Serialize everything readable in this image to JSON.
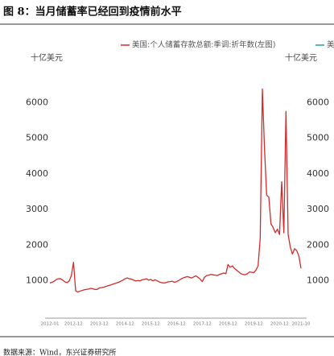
{
  "chart_data": {
    "type": "line",
    "title": "图 8：当月储蓄率已经回到疫情前水平",
    "y_unit_left": "十亿美元",
    "y_unit_right": "十亿美元",
    "source": "数据来源：Wind，东兴证券研究所",
    "x": [
      "2012-01",
      "2012-02",
      "2012-03",
      "2012-04",
      "2012-05",
      "2012-06",
      "2012-07",
      "2012-08",
      "2012-09",
      "2012-10",
      "2012-11",
      "2012-12",
      "2013-01",
      "2013-02",
      "2013-03",
      "2013-04",
      "2013-05",
      "2013-06",
      "2013-07",
      "2013-08",
      "2013-09",
      "2013-10",
      "2013-11",
      "2013-12",
      "2014-01",
      "2014-02",
      "2014-03",
      "2014-04",
      "2014-05",
      "2014-06",
      "2014-07",
      "2014-08",
      "2014-09",
      "2014-10",
      "2014-11",
      "2014-12",
      "2015-01",
      "2015-02",
      "2015-03",
      "2015-04",
      "2015-05",
      "2015-06",
      "2015-07",
      "2015-08",
      "2015-09",
      "2015-10",
      "2015-11",
      "2015-12",
      "2016-01",
      "2016-02",
      "2016-03",
      "2016-04",
      "2016-05",
      "2016-06",
      "2016-07",
      "2016-08",
      "2016-09",
      "2016-10",
      "2016-11",
      "2016-12",
      "2017-01",
      "2017-02",
      "2017-03",
      "2017-04",
      "2017-05",
      "2017-06",
      "2017-07",
      "2017-08",
      "2017-09",
      "2017-10",
      "2017-11",
      "2017-12",
      "2018-01",
      "2018-02",
      "2018-03",
      "2018-04",
      "2018-05",
      "2018-06",
      "2018-07",
      "2018-08",
      "2018-09",
      "2018-10",
      "2018-11",
      "2018-12",
      "2019-01",
      "2019-02",
      "2019-03",
      "2019-04",
      "2019-05",
      "2019-06",
      "2019-07",
      "2019-08",
      "2019-09",
      "2019-10",
      "2019-11",
      "2019-12",
      "2020-01",
      "2020-02",
      "2020-03",
      "2020-04",
      "2020-05",
      "2020-06",
      "2020-07",
      "2020-08",
      "2020-09",
      "2020-10",
      "2020-11",
      "2020-12",
      "2021-01",
      "2021-02",
      "2021-03",
      "2021-04",
      "2021-05",
      "2021-06",
      "2021-07",
      "2021-08",
      "2021-09",
      "2021-10"
    ],
    "xticks": [
      "2012-01",
      "2012-12",
      "2013-12",
      "2014-12",
      "2015-12",
      "2016-12",
      "2017-12",
      "2018-12",
      "2019-12",
      "2020-12",
      "2021-10"
    ],
    "series": [
      {
        "name": "美国:个人储蓄存款总额:季调:折年数(左图)",
        "color": "#d42a2a",
        "values": [
          940,
          960,
          990,
          1040,
          1060,
          1060,
          1020,
          970,
          950,
          1000,
          1150,
          1520,
          720,
          690,
          710,
          730,
          750,
          760,
          770,
          790,
          780,
          760,
          760,
          800,
          810,
          820,
          840,
          860,
          880,
          900,
          920,
          940,
          960,
          990,
          1020,
          1060,
          1080,
          1060,
          1050,
          1020,
          1000,
          1010,
          1000,
          1030,
          1040,
          1060,
          1020,
          1040,
          1000,
          1030,
          1000,
          970,
          950,
          940,
          950,
          970,
          980,
          990,
          960,
          980,
          1010,
          1050,
          1080,
          1100,
          1120,
          1100,
          1080,
          1110,
          1140,
          1100,
          1050,
          980,
          1100,
          1150,
          1160,
          1180,
          1170,
          1160,
          1150,
          1180,
          1200,
          1220,
          1200,
          1460,
          1380,
          1420,
          1350,
          1300,
          1250,
          1200,
          1180,
          1170,
          1200,
          1250,
          1240,
          1230,
          1300,
          1420,
          2200,
          6380,
          4700,
          3400,
          3350,
          2600,
          2500,
          2350,
          2450,
          2300,
          3780,
          2350,
          5750,
          2300,
          1950,
          1750,
          1900,
          1850,
          1700,
          1350
        ]
      },
      {
        "name": "美国:",
        "color": "#2a9d9d",
        "axis": "y2",
        "values": [
          null,
          null,
          null,
          null,
          null,
          null,
          null,
          null,
          null,
          null,
          null,
          null,
          null,
          null,
          null,
          null,
          null,
          null,
          null,
          null,
          null,
          null,
          null,
          null,
          null,
          null,
          null,
          null,
          null,
          null,
          null,
          null,
          null,
          null,
          null,
          null,
          null,
          null,
          null,
          null,
          null,
          null,
          null,
          null,
          null,
          null,
          null,
          null,
          null,
          null,
          null,
          null,
          null,
          null,
          null,
          null,
          null,
          null,
          null,
          null,
          null,
          null,
          null,
          null,
          null,
          null,
          null,
          null,
          null,
          null,
          null,
          null,
          null,
          null,
          null,
          null,
          null,
          null,
          null,
          null,
          null,
          null,
          null,
          null,
          null,
          null,
          null,
          null,
          null,
          null,
          null,
          null,
          null,
          null,
          null,
          null,
          null,
          null,
          null,
          null,
          null,
          null,
          null,
          null,
          null,
          null,
          null,
          null,
          null,
          null,
          null,
          null,
          null,
          null,
          null,
          null,
          null,
          null
        ]
      }
    ],
    "ylim": [
      0,
      7000
    ],
    "yticks": [
      1000,
      2000,
      3000,
      4000,
      5000,
      6000
    ],
    "y2lim": [
      0,
      7000
    ],
    "y2ticks": [
      1000,
      2000,
      3000,
      4000,
      5000,
      6000
    ],
    "grid": false
  }
}
